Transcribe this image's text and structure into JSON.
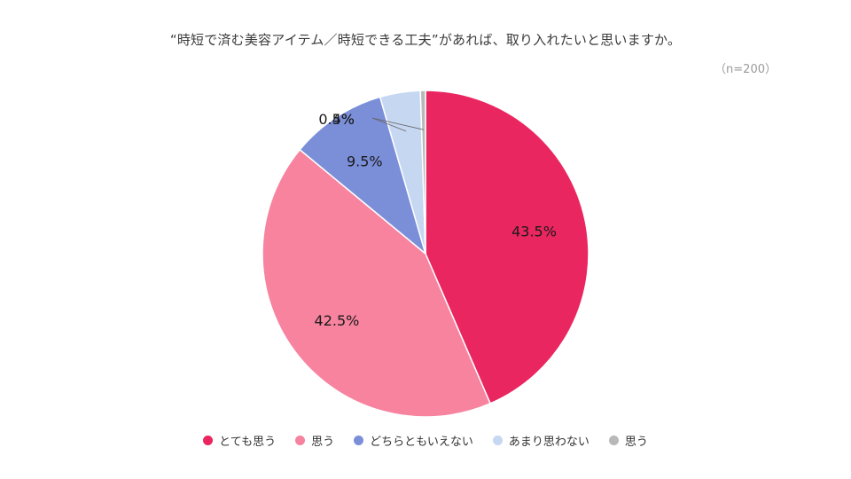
{
  "chart_data": {
    "type": "pie",
    "title": "“時短で済む美容アイテム／時短できる工夫”があれば、取り入れたいと思いますか。",
    "subtitle": "（n=200）",
    "legend_position": "bottom",
    "categories": [
      "とても思う",
      "思う",
      "どちらともいえない",
      "あまり思わない",
      "思う"
    ],
    "values": [
      43.5,
      42.5,
      9.5,
      4,
      0.5
    ],
    "value_labels": [
      "43.5%",
      "42.5%",
      "9.5%",
      "4%",
      "0.5%"
    ],
    "colors": [
      "#ea2660",
      "#f7839f",
      "#7b8fd9",
      "#c6d7f2",
      "#b8b8b8"
    ]
  }
}
